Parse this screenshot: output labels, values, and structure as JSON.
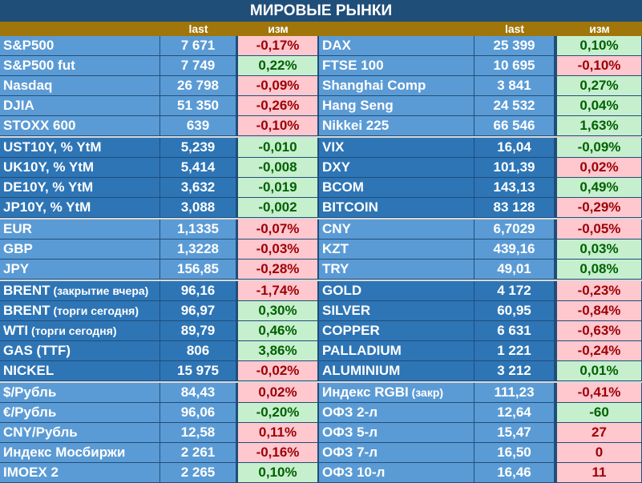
{
  "title": "МИРОВЫЕ РЫНКИ",
  "header": {
    "last_left": "last",
    "chg_left": "изм",
    "last_right": "last",
    "chg_right": "изм"
  },
  "groups": [
    {
      "color": "#5b9bd5",
      "rows": [
        {
          "l": {
            "name": "S&P500",
            "last": "7 671",
            "chg": "-0,17%",
            "s": "neg"
          },
          "r": {
            "name": "DAX",
            "last": "25 399",
            "chg": "0,10%",
            "s": "pos"
          }
        },
        {
          "l": {
            "name": "S&P500 fut",
            "last": "7 749",
            "chg": "0,22%",
            "s": "pos"
          },
          "r": {
            "name": "FTSE 100",
            "last": "10 695",
            "chg": "-0,10%",
            "s": "neg"
          }
        },
        {
          "l": {
            "name": "Nasdaq",
            "last": "26 798",
            "chg": "-0,09%",
            "s": "neg"
          },
          "r": {
            "name": "Shanghai Comp",
            "last": "3 841",
            "chg": "0,27%",
            "s": "pos"
          }
        },
        {
          "l": {
            "name": "DJIA",
            "last": "51 350",
            "chg": "-0,26%",
            "s": "neg"
          },
          "r": {
            "name": "Hang Seng",
            "last": "24 532",
            "chg": "0,04%",
            "s": "pos"
          }
        },
        {
          "l": {
            "name": "STOXX 600",
            "last": "639",
            "chg": "-0,10%",
            "s": "neg"
          },
          "r": {
            "name": "Nikkei 225",
            "last": "66 546",
            "chg": "1,63%",
            "s": "pos"
          }
        }
      ]
    },
    {
      "color": "#2e75b6",
      "rows": [
        {
          "l": {
            "name": "UST10Y, % YtM",
            "last": "5,239",
            "chg": "-0,010",
            "s": "pos"
          },
          "r": {
            "name": "VIX",
            "last": "16,04",
            "chg": "-0,09%",
            "s": "pos"
          }
        },
        {
          "l": {
            "name": "UK10Y, % YtM",
            "last": "5,414",
            "chg": "-0,008",
            "s": "pos"
          },
          "r": {
            "name": "DXY",
            "last": "101,39",
            "chg": "0,02%",
            "s": "neg"
          }
        },
        {
          "l": {
            "name": "DE10Y, % YtM",
            "last": "3,632",
            "chg": "-0,019",
            "s": "pos"
          },
          "r": {
            "name": "BCOM",
            "last": "143,13",
            "chg": "0,49%",
            "s": "pos"
          }
        },
        {
          "l": {
            "name": "JP10Y, % YtM",
            "last": "3,088",
            "chg": "-0,002",
            "s": "pos"
          },
          "r": {
            "name": "BITCOIN",
            "last": "83 128",
            "chg": "-0,29%",
            "s": "neg"
          }
        }
      ]
    },
    {
      "color": "#5b9bd5",
      "rows": [
        {
          "l": {
            "name": "EUR",
            "last": "1,1335",
            "chg": "-0,07%",
            "s": "neg"
          },
          "r": {
            "name": "CNY",
            "last": "6,7029",
            "chg": "-0,05%",
            "s": "neg"
          }
        },
        {
          "l": {
            "name": "GBP",
            "last": "1,3228",
            "chg": "-0,03%",
            "s": "neg"
          },
          "r": {
            "name": "KZT",
            "last": "439,16",
            "chg": "0,03%",
            "s": "pos"
          }
        },
        {
          "l": {
            "name": "JPY",
            "last": "156,85",
            "chg": "-0,28%",
            "s": "neg"
          },
          "r": {
            "name": "TRY",
            "last": "49,01",
            "chg": "0,08%",
            "s": "pos"
          }
        }
      ]
    },
    {
      "color": "#2e75b6",
      "rows": [
        {
          "l": {
            "name": "BRENT",
            "note": "(закрытие вчера)",
            "last": "96,16",
            "chg": "-1,74%",
            "s": "neg"
          },
          "r": {
            "name": "GOLD",
            "last": "4 172",
            "chg": "-0,23%",
            "s": "neg"
          }
        },
        {
          "l": {
            "name": "BRENT",
            "note": "(торги сегодня)",
            "last": "96,97",
            "chg": "0,30%",
            "s": "pos"
          },
          "r": {
            "name": "SILVER",
            "last": "60,95",
            "chg": "-0,84%",
            "s": "neg"
          }
        },
        {
          "l": {
            "name": "WTI",
            "note": "(торги сегодня)",
            "last": "89,79",
            "chg": "0,46%",
            "s": "pos"
          },
          "r": {
            "name": "COPPER",
            "last": "6 631",
            "chg": "-0,63%",
            "s": "neg"
          }
        },
        {
          "l": {
            "name": "GAS (TTF)",
            "last": "806",
            "chg": "3,86%",
            "s": "pos"
          },
          "r": {
            "name": "PALLADIUM",
            "last": "1 221",
            "chg": "-0,24%",
            "s": "neg"
          }
        },
        {
          "l": {
            "name": "NICKEL",
            "last": "15 975",
            "chg": "-0,02%",
            "s": "neg"
          },
          "r": {
            "name": "ALUMINIUM",
            "last": "3 212",
            "chg": "0,01%",
            "s": "pos"
          }
        }
      ]
    },
    {
      "color": "#5b9bd5",
      "rows": [
        {
          "l": {
            "name": "$/Рубль",
            "last": "84,43",
            "chg": "0,02%",
            "s": "neg"
          },
          "r": {
            "name": "Индекс RGBI",
            "note": "(закр)",
            "last": "111,23",
            "chg": "-0,41%",
            "s": "neg"
          }
        },
        {
          "l": {
            "name": "€/Рубль",
            "last": "96,06",
            "chg": "-0,20%",
            "s": "pos"
          },
          "r": {
            "name": "ОФЗ 2-л",
            "last": "12,64",
            "chg": "-60",
            "s": "pos"
          }
        },
        {
          "l": {
            "name": "CNY/Рубль",
            "last": "12,58",
            "chg": "0,11%",
            "s": "neg"
          },
          "r": {
            "name": "ОФЗ 5-л",
            "last": "15,47",
            "chg": "27",
            "s": "neg"
          }
        },
        {
          "l": {
            "name": "Индекс Мосбиржи",
            "last": "2 261",
            "chg": "-0,16%",
            "s": "neg"
          },
          "r": {
            "name": "ОФЗ 7-л",
            "last": "16,50",
            "chg": "0",
            "s": "neg"
          }
        },
        {
          "l": {
            "name": "IMOEX 2",
            "last": "2 265",
            "chg": "0,10%",
            "s": "pos"
          },
          "r": {
            "name": "ОФЗ 10-л",
            "last": "16,46",
            "chg": "11",
            "s": "neg"
          }
        }
      ]
    }
  ]
}
